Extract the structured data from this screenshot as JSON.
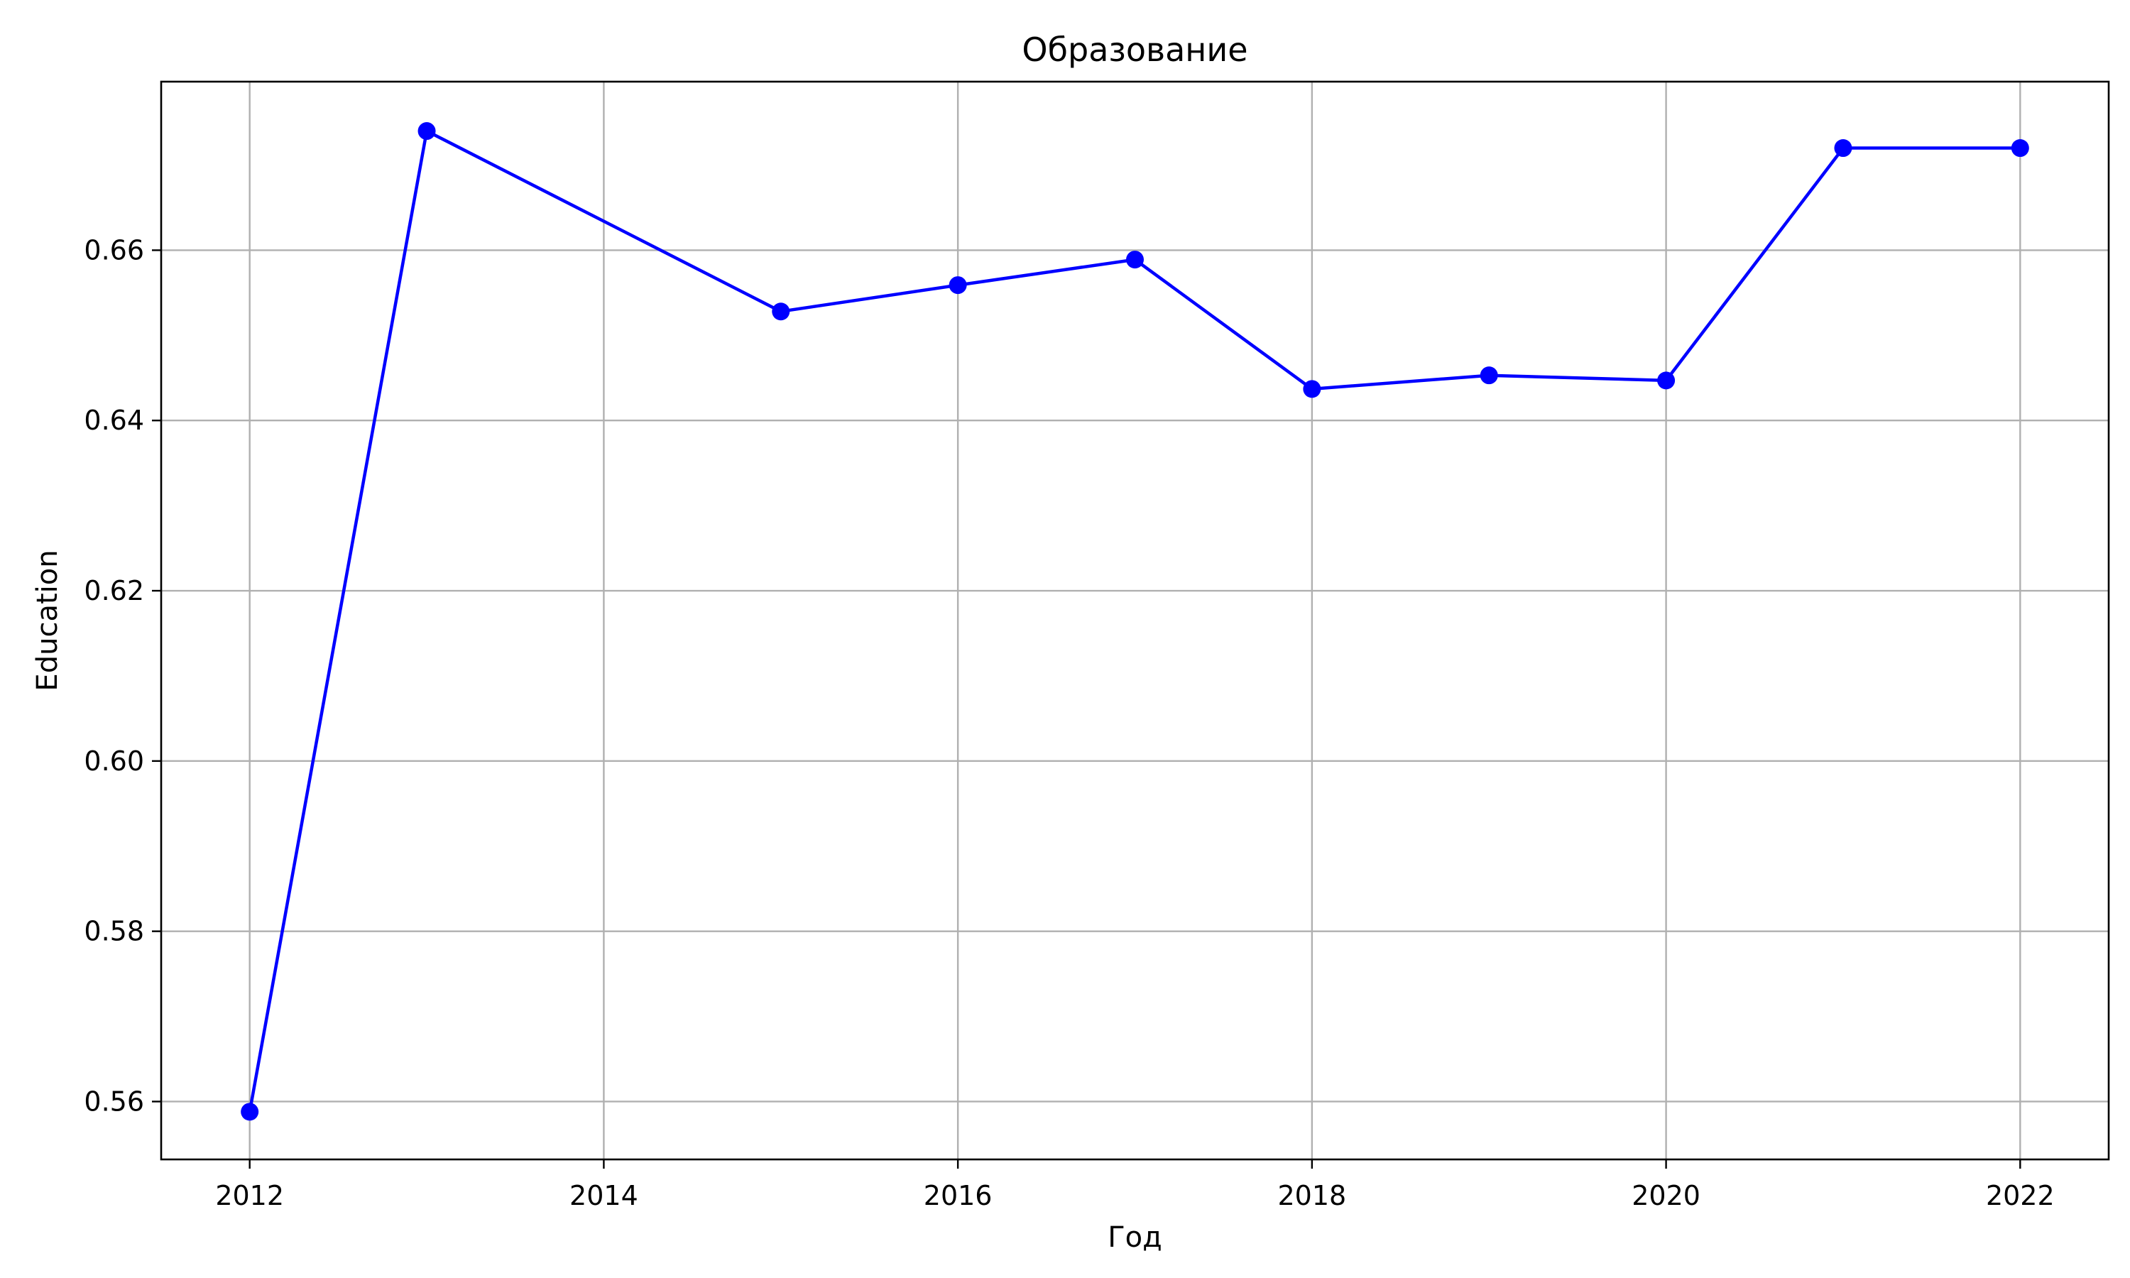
{
  "chart_data": {
    "type": "line",
    "title": "Образование",
    "xlabel": "Год",
    "ylabel": "Education",
    "x": [
      2012,
      2013,
      2015,
      2016,
      2017,
      2018,
      2019,
      2020,
      2021,
      2022
    ],
    "series": [
      {
        "values": [
          0.5588,
          0.674,
          0.6528,
          0.6559,
          0.6589,
          0.6437,
          0.6453,
          0.6447,
          0.672,
          0.672
        ],
        "color": "#0000ff",
        "marker": "circle"
      }
    ],
    "xlim": [
      2011.5,
      2022.5
    ],
    "ylim": [
      0.5532,
      0.6798
    ],
    "xticks": [
      2012,
      2014,
      2016,
      2018,
      2020,
      2022
    ],
    "yticks": [
      0.56,
      0.58,
      0.6,
      0.62,
      0.64,
      0.66
    ],
    "ytick_labels": [
      "0.56",
      "0.58",
      "0.60",
      "0.62",
      "0.64",
      "0.66"
    ],
    "grid": true,
    "legend": false
  }
}
